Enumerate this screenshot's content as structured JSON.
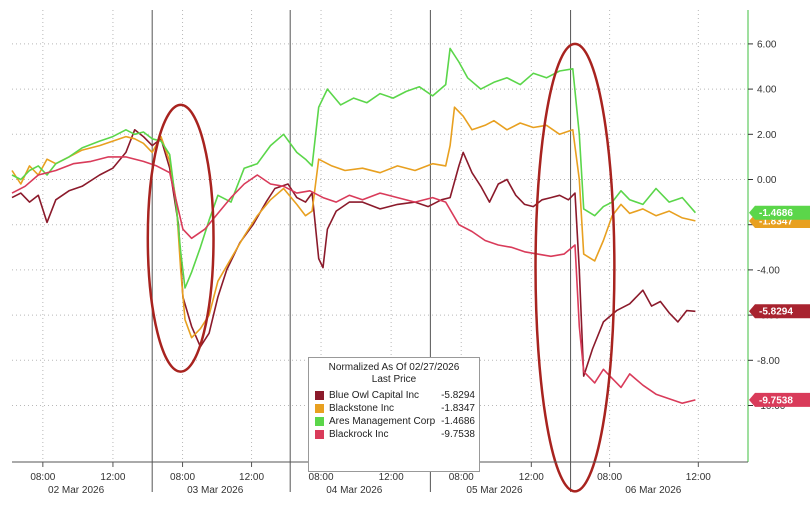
{
  "chart_data": {
    "type": "line",
    "legend": {
      "title": "Normalized As Of 02/27/2026",
      "subtitle": "Last Price",
      "placement": "bottom-center"
    },
    "y_axis": {
      "side": "right",
      "ylim": [
        -12.5,
        7.5
      ],
      "ticks": [
        "6.00",
        "4.00",
        "2.00",
        "0.00",
        "-2.00",
        "-4.00",
        "-6.00",
        "-8.00",
        "-10.00"
      ],
      "tick_values": [
        6,
        4,
        2,
        0,
        -2,
        -4,
        -6,
        -8,
        -10
      ]
    },
    "x_axis": {
      "days": [
        "02 Mar 2026",
        "03 Mar 2026",
        "04 Mar 2026",
        "05 Mar 2026",
        "06 Mar 2026"
      ],
      "time_ticks": [
        "08:00",
        "12:00",
        "08:00",
        "12:00",
        "08:00",
        "12:00",
        "08:00",
        "12:00",
        "08:00",
        "12:00"
      ]
    },
    "grid": true,
    "series": [
      {
        "name": "Blue Owl Capital Inc",
        "color": "#8b1a2b",
        "last_label": "-5.8294",
        "last_value": -5.8294,
        "points": [
          [
            0,
            -0.8
          ],
          [
            0.2,
            -0.6
          ],
          [
            0.4,
            -1.0
          ],
          [
            0.6,
            -0.7
          ],
          [
            0.8,
            -1.9
          ],
          [
            1.0,
            -0.9
          ],
          [
            1.3,
            -0.5
          ],
          [
            1.6,
            -0.3
          ],
          [
            2.0,
            0.2
          ],
          [
            2.3,
            0.5
          ],
          [
            2.6,
            1.2
          ],
          [
            2.8,
            2.2
          ],
          [
            3.0,
            1.9
          ],
          [
            3.2,
            1.5
          ],
          [
            3.4,
            1.8
          ],
          [
            3.6,
            0.5
          ],
          [
            3.8,
            -2.0
          ],
          [
            3.9,
            -5.2
          ],
          [
            4.1,
            -6.5
          ],
          [
            4.3,
            -7.4
          ],
          [
            4.5,
            -6.8
          ],
          [
            4.7,
            -5.2
          ],
          [
            4.9,
            -4.0
          ],
          [
            5.2,
            -2.8
          ],
          [
            5.5,
            -2.0
          ],
          [
            5.8,
            -1.0
          ],
          [
            6.0,
            -0.4
          ],
          [
            6.3,
            -0.2
          ],
          [
            6.5,
            -0.8
          ],
          [
            6.7,
            -1.0
          ],
          [
            6.85,
            -0.6
          ],
          [
            7.0,
            -3.5
          ],
          [
            7.1,
            -3.9
          ],
          [
            7.2,
            -2.2
          ],
          [
            7.4,
            -1.4
          ],
          [
            7.7,
            -1.0
          ],
          [
            8.0,
            -1.0
          ],
          [
            8.4,
            -1.3
          ],
          [
            8.8,
            -1.1
          ],
          [
            9.2,
            -1.0
          ],
          [
            9.5,
            -1.2
          ],
          [
            9.8,
            -0.9
          ],
          [
            10.0,
            -0.8
          ],
          [
            10.2,
            0.6
          ],
          [
            10.3,
            1.2
          ],
          [
            10.5,
            0.3
          ],
          [
            10.7,
            -0.3
          ],
          [
            10.9,
            -1.0
          ],
          [
            11.1,
            -0.2
          ],
          [
            11.3,
            0.0
          ],
          [
            11.5,
            -0.7
          ],
          [
            11.7,
            -1.1
          ],
          [
            11.9,
            -1.2
          ],
          [
            12.1,
            -0.9
          ],
          [
            12.3,
            -0.8
          ],
          [
            12.5,
            -0.7
          ],
          [
            12.7,
            -0.9
          ],
          [
            12.85,
            -0.6
          ],
          [
            12.95,
            -4.0
          ],
          [
            13.05,
            -8.7
          ],
          [
            13.25,
            -7.5
          ],
          [
            13.5,
            -6.3
          ],
          [
            13.8,
            -5.8
          ],
          [
            14.1,
            -5.5
          ],
          [
            14.4,
            -4.9
          ],
          [
            14.6,
            -5.6
          ],
          [
            14.8,
            -5.4
          ],
          [
            15.0,
            -5.9
          ],
          [
            15.2,
            -6.3
          ],
          [
            15.4,
            -5.8
          ],
          [
            15.6,
            -5.83
          ]
        ]
      },
      {
        "name": "Blackstone Inc",
        "color": "#e8a020",
        "last_label": "-1.8347",
        "last_value": -1.8347,
        "points": [
          [
            0,
            0.4
          ],
          [
            0.2,
            -0.2
          ],
          [
            0.4,
            0.6
          ],
          [
            0.6,
            0.2
          ],
          [
            0.8,
            0.9
          ],
          [
            1.0,
            0.7
          ],
          [
            1.3,
            1.0
          ],
          [
            1.6,
            1.3
          ],
          [
            2.0,
            1.5
          ],
          [
            2.3,
            1.7
          ],
          [
            2.6,
            1.9
          ],
          [
            2.8,
            1.8
          ],
          [
            3.0,
            1.6
          ],
          [
            3.2,
            1.2
          ],
          [
            3.4,
            1.9
          ],
          [
            3.6,
            0.8
          ],
          [
            3.75,
            -1.0
          ],
          [
            3.85,
            -4.0
          ],
          [
            3.95,
            -6.2
          ],
          [
            4.1,
            -7.0
          ],
          [
            4.3,
            -6.6
          ],
          [
            4.5,
            -6.0
          ],
          [
            4.7,
            -4.5
          ],
          [
            5.0,
            -3.5
          ],
          [
            5.3,
            -2.5
          ],
          [
            5.6,
            -1.6
          ],
          [
            5.9,
            -0.9
          ],
          [
            6.2,
            -0.4
          ],
          [
            6.5,
            -1.1
          ],
          [
            6.7,
            -1.6
          ],
          [
            6.85,
            -1.4
          ],
          [
            7.0,
            0.9
          ],
          [
            7.3,
            0.6
          ],
          [
            7.6,
            0.4
          ],
          [
            8.0,
            0.5
          ],
          [
            8.4,
            0.3
          ],
          [
            8.8,
            0.6
          ],
          [
            9.2,
            0.4
          ],
          [
            9.6,
            0.7
          ],
          [
            9.9,
            0.6
          ],
          [
            10.0,
            1.5
          ],
          [
            10.1,
            3.2
          ],
          [
            10.3,
            2.8
          ],
          [
            10.5,
            2.2
          ],
          [
            10.8,
            2.4
          ],
          [
            11.0,
            2.6
          ],
          [
            11.3,
            2.2
          ],
          [
            11.6,
            2.5
          ],
          [
            11.9,
            2.3
          ],
          [
            12.2,
            2.4
          ],
          [
            12.5,
            2.0
          ],
          [
            12.8,
            2.2
          ],
          [
            12.95,
            0.0
          ],
          [
            13.05,
            -3.3
          ],
          [
            13.3,
            -3.6
          ],
          [
            13.5,
            -2.7
          ],
          [
            13.7,
            -1.6
          ],
          [
            13.9,
            -1.1
          ],
          [
            14.1,
            -1.5
          ],
          [
            14.4,
            -1.3
          ],
          [
            14.7,
            -1.6
          ],
          [
            15.0,
            -1.4
          ],
          [
            15.3,
            -1.7
          ],
          [
            15.6,
            -1.83
          ]
        ]
      },
      {
        "name": "Ares Management Corp",
        "color": "#5bd64a",
        "last_label": "-1.4686",
        "last_value": -1.4686,
        "points": [
          [
            0,
            0.2
          ],
          [
            0.2,
            0.0
          ],
          [
            0.4,
            0.4
          ],
          [
            0.6,
            0.6
          ],
          [
            0.8,
            0.2
          ],
          [
            1.0,
            0.7
          ],
          [
            1.3,
            1.0
          ],
          [
            1.6,
            1.4
          ],
          [
            2.0,
            1.7
          ],
          [
            2.3,
            1.9
          ],
          [
            2.6,
            2.2
          ],
          [
            2.8,
            2.0
          ],
          [
            3.0,
            2.1
          ],
          [
            3.2,
            1.8
          ],
          [
            3.4,
            1.7
          ],
          [
            3.6,
            1.1
          ],
          [
            3.75,
            -1.2
          ],
          [
            3.85,
            -3.2
          ],
          [
            3.95,
            -4.8
          ],
          [
            4.1,
            -4.1
          ],
          [
            4.3,
            -3.0
          ],
          [
            4.5,
            -1.8
          ],
          [
            4.7,
            -0.7
          ],
          [
            5.0,
            -1.0
          ],
          [
            5.3,
            0.5
          ],
          [
            5.6,
            0.7
          ],
          [
            5.9,
            1.5
          ],
          [
            6.2,
            2.0
          ],
          [
            6.5,
            1.2
          ],
          [
            6.7,
            0.9
          ],
          [
            6.85,
            0.6
          ],
          [
            7.0,
            3.2
          ],
          [
            7.2,
            4.0
          ],
          [
            7.5,
            3.3
          ],
          [
            7.8,
            3.6
          ],
          [
            8.1,
            3.4
          ],
          [
            8.4,
            3.8
          ],
          [
            8.7,
            3.6
          ],
          [
            9.0,
            3.9
          ],
          [
            9.3,
            4.1
          ],
          [
            9.6,
            3.7
          ],
          [
            9.9,
            4.2
          ],
          [
            10.0,
            5.8
          ],
          [
            10.2,
            5.2
          ],
          [
            10.4,
            4.5
          ],
          [
            10.7,
            4.0
          ],
          [
            11.0,
            4.3
          ],
          [
            11.3,
            4.5
          ],
          [
            11.6,
            4.2
          ],
          [
            11.9,
            4.7
          ],
          [
            12.2,
            4.5
          ],
          [
            12.5,
            4.8
          ],
          [
            12.8,
            4.9
          ],
          [
            12.95,
            2.0
          ],
          [
            13.05,
            -1.3
          ],
          [
            13.3,
            -1.6
          ],
          [
            13.5,
            -1.2
          ],
          [
            13.7,
            -1.0
          ],
          [
            13.9,
            -0.5
          ],
          [
            14.1,
            -0.9
          ],
          [
            14.4,
            -1.1
          ],
          [
            14.7,
            -0.4
          ],
          [
            15.0,
            -1.0
          ],
          [
            15.3,
            -0.8
          ],
          [
            15.6,
            -1.47
          ]
        ]
      },
      {
        "name": "Blackrock Inc",
        "color": "#d93b5a",
        "last_label": "-9.7538",
        "last_value": -9.7538,
        "points": [
          [
            0,
            -0.6
          ],
          [
            0.3,
            -0.3
          ],
          [
            0.6,
            0.2
          ],
          [
            1.0,
            0.4
          ],
          [
            1.4,
            0.7
          ],
          [
            1.8,
            0.8
          ],
          [
            2.2,
            1.0
          ],
          [
            2.6,
            1.0
          ],
          [
            3.0,
            0.8
          ],
          [
            3.3,
            0.6
          ],
          [
            3.6,
            0.3
          ],
          [
            3.9,
            -2.2
          ],
          [
            4.1,
            -2.6
          ],
          [
            4.4,
            -2.2
          ],
          [
            4.7,
            -1.5
          ],
          [
            5.0,
            -0.8
          ],
          [
            5.3,
            -0.2
          ],
          [
            5.6,
            0.2
          ],
          [
            5.9,
            -0.2
          ],
          [
            6.2,
            -0.3
          ],
          [
            6.5,
            -0.6
          ],
          [
            6.8,
            -0.5
          ],
          [
            7.1,
            -0.8
          ],
          [
            7.4,
            -1.0
          ],
          [
            7.7,
            -0.7
          ],
          [
            8.0,
            -0.9
          ],
          [
            8.4,
            -0.6
          ],
          [
            8.8,
            -0.8
          ],
          [
            9.2,
            -1.0
          ],
          [
            9.6,
            -0.8
          ],
          [
            9.9,
            -1.0
          ],
          [
            10.2,
            -2.0
          ],
          [
            10.5,
            -2.3
          ],
          [
            10.8,
            -2.7
          ],
          [
            11.1,
            -2.9
          ],
          [
            11.4,
            -3.0
          ],
          [
            11.7,
            -3.2
          ],
          [
            12.0,
            -3.3
          ],
          [
            12.3,
            -3.4
          ],
          [
            12.6,
            -3.3
          ],
          [
            12.85,
            -2.9
          ],
          [
            12.95,
            -6.5
          ],
          [
            13.05,
            -8.5
          ],
          [
            13.3,
            -9.0
          ],
          [
            13.5,
            -8.4
          ],
          [
            13.7,
            -8.8
          ],
          [
            13.9,
            -9.2
          ],
          [
            14.1,
            -8.6
          ],
          [
            14.4,
            -9.1
          ],
          [
            14.7,
            -9.5
          ],
          [
            15.0,
            -9.7
          ],
          [
            15.3,
            -9.9
          ],
          [
            15.6,
            -9.75
          ]
        ]
      },
      {
        "name": "",
        "color": "#8b1a2b",
        "role": "annotation-ellipse",
        "points": [],
        "annotations": [
          {
            "type": "ellipse",
            "x_center": 3.85,
            "y_center": -2.6,
            "x_radius": 0.75,
            "y_radius": 5.9,
            "color": "#a8231f"
          },
          {
            "type": "ellipse",
            "x_center": 12.85,
            "y_center": -3.9,
            "x_radius": 0.9,
            "y_radius": 9.9,
            "color": "#a8231f"
          }
        ]
      }
    ],
    "x_range": [
      0,
      16.8
    ],
    "day_boundaries": [
      3.2,
      6.35,
      9.55,
      12.75
    ]
  },
  "colors": {
    "grid": "#b8b8b8",
    "y_axis_line": "#3fbf3f",
    "axis_text": "#333333"
  }
}
